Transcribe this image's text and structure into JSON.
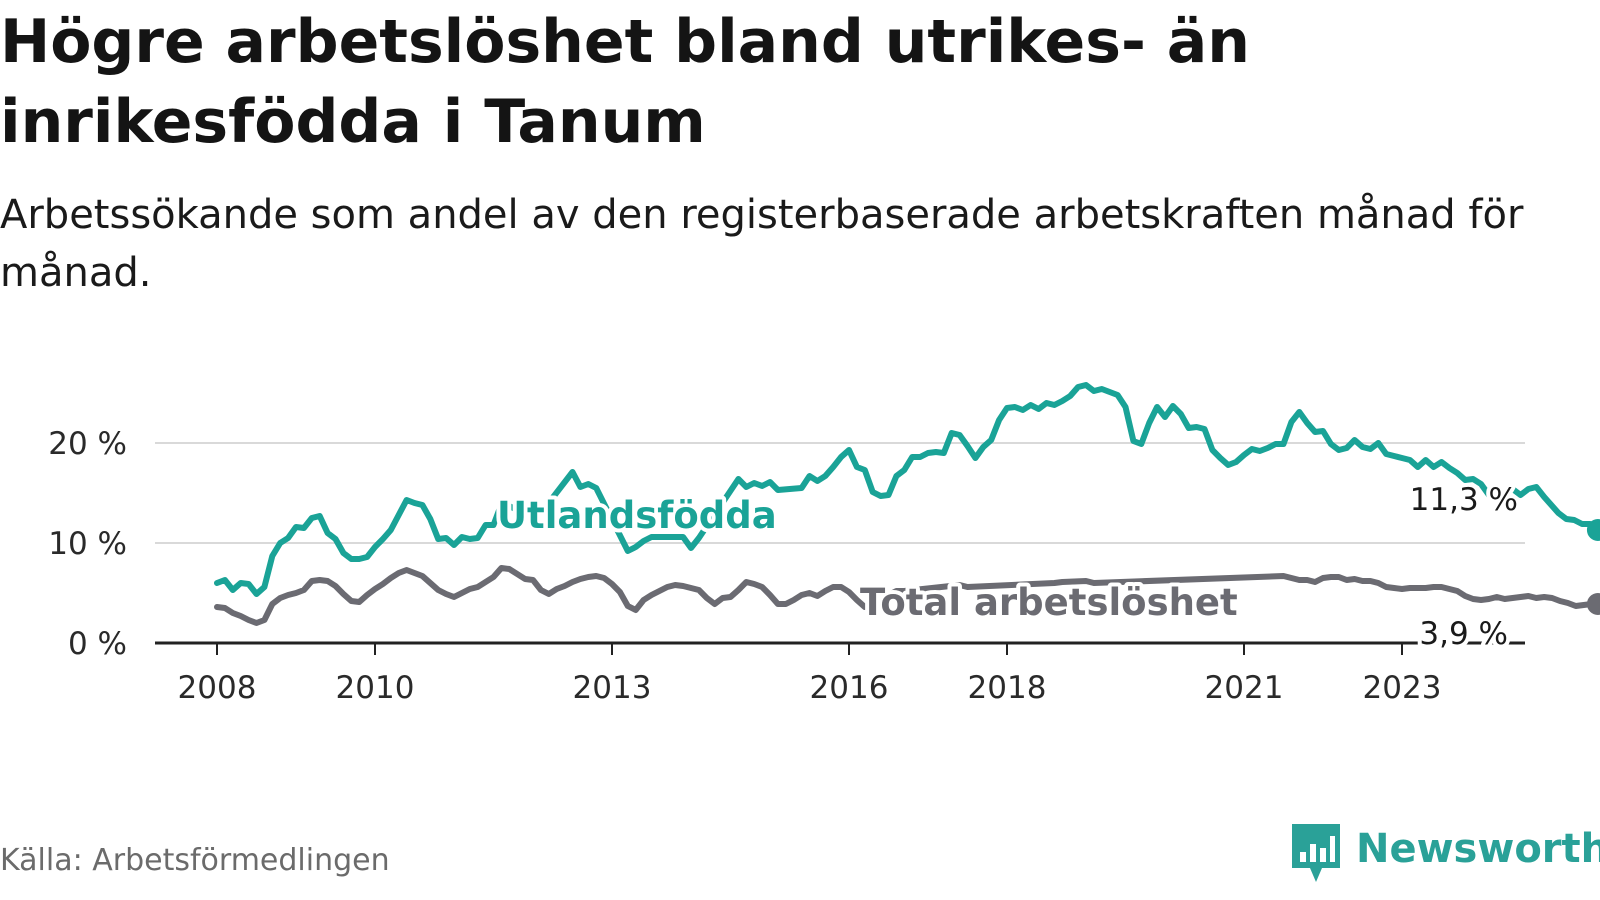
{
  "header": {
    "title": "Högre arbetslöshet bland utrikes- än inrikesfödda i Tanum",
    "subtitle": "Arbetssökande som andel av den registerbaserade arbetskraften månad för månad."
  },
  "footer": {
    "source": "Källa: Arbetsförmedlingen",
    "brand": "Newsworthy"
  },
  "colors": {
    "foreign": "#1aa397",
    "total": "#6b6b72",
    "grid": "#d9d9d9",
    "axis": "#222222",
    "brand": "#2aa198"
  },
  "chart_data": {
    "type": "line",
    "title": "Högre arbetslöshet bland utrikes- än inrikesfödda i Tanum",
    "xlabel": "",
    "ylabel": "",
    "xlim": [
      2007.6,
      2024.9
    ],
    "ylim": [
      0,
      26
    ],
    "y_ticks": [
      0,
      10,
      20
    ],
    "y_tick_labels": [
      "0 %",
      "10 %",
      "20 %"
    ],
    "x_ticks": [
      2008,
      2010,
      2013,
      2016,
      2018,
      2021,
      2023
    ],
    "x_tick_labels": [
      "2008",
      "2010",
      "2013",
      "2016",
      "2018",
      "2021",
      "2023"
    ],
    "grid": true,
    "series": [
      {
        "name": "Utlandsfödda",
        "label": "Utlandsfödda",
        "color": "#1aa397",
        "end_label": "11,3 %",
        "end_value": 11.3,
        "points": [
          [
            2008.0,
            6.0
          ],
          [
            2008.1,
            6.3
          ],
          [
            2008.2,
            5.3
          ],
          [
            2008.3,
            6.0
          ],
          [
            2008.4,
            5.9
          ],
          [
            2008.5,
            4.9
          ],
          [
            2008.6,
            5.6
          ],
          [
            2008.7,
            8.7
          ],
          [
            2008.8,
            10.0
          ],
          [
            2008.9,
            10.5
          ],
          [
            2009.0,
            11.6
          ],
          [
            2009.1,
            11.5
          ],
          [
            2009.2,
            12.5
          ],
          [
            2009.3,
            12.7
          ],
          [
            2009.4,
            11.0
          ],
          [
            2009.5,
            10.4
          ],
          [
            2009.6,
            9.0
          ],
          [
            2009.7,
            8.4
          ],
          [
            2009.8,
            8.4
          ],
          [
            2009.9,
            8.6
          ],
          [
            2010.0,
            9.6
          ],
          [
            2010.1,
            10.4
          ],
          [
            2010.2,
            11.3
          ],
          [
            2010.3,
            12.8
          ],
          [
            2010.4,
            14.3
          ],
          [
            2010.5,
            14.0
          ],
          [
            2010.6,
            13.8
          ],
          [
            2010.7,
            12.4
          ],
          [
            2010.8,
            10.4
          ],
          [
            2010.9,
            10.5
          ],
          [
            2011.0,
            9.8
          ],
          [
            2011.1,
            10.6
          ],
          [
            2011.2,
            10.4
          ],
          [
            2011.3,
            10.5
          ],
          [
            2011.4,
            11.8
          ],
          [
            2011.5,
            11.8
          ],
          [
            2011.6,
            13.9
          ],
          [
            2011.7,
            13.7
          ],
          [
            2011.8,
            13.3
          ],
          [
            2011.9,
            13.5
          ],
          [
            2012.0,
            14.2
          ],
          [
            2012.1,
            13.0
          ],
          [
            2012.5,
            17.1
          ],
          [
            2012.6,
            15.6
          ],
          [
            2012.7,
            15.9
          ],
          [
            2012.8,
            15.5
          ],
          [
            2013.2,
            9.2
          ],
          [
            2013.3,
            9.6
          ],
          [
            2013.4,
            10.2
          ],
          [
            2013.5,
            10.6
          ],
          [
            2013.9,
            10.6
          ],
          [
            2014.0,
            9.5
          ],
          [
            2014.1,
            10.5
          ],
          [
            2014.6,
            16.4
          ],
          [
            2014.7,
            15.6
          ],
          [
            2014.8,
            16.0
          ],
          [
            2014.9,
            15.7
          ],
          [
            2015.0,
            16.1
          ],
          [
            2015.1,
            15.3
          ],
          [
            2015.4,
            15.5
          ],
          [
            2015.5,
            16.7
          ],
          [
            2015.6,
            16.2
          ],
          [
            2015.7,
            16.7
          ],
          [
            2015.8,
            17.6
          ],
          [
            2015.9,
            18.6
          ],
          [
            2016.0,
            19.3
          ],
          [
            2016.1,
            17.6
          ],
          [
            2016.2,
            17.3
          ],
          [
            2016.3,
            15.1
          ],
          [
            2016.4,
            14.7
          ],
          [
            2016.5,
            14.8
          ],
          [
            2016.6,
            16.7
          ],
          [
            2016.7,
            17.3
          ],
          [
            2016.8,
            18.6
          ],
          [
            2016.9,
            18.6
          ],
          [
            2017.0,
            19.0
          ],
          [
            2017.1,
            19.1
          ],
          [
            2017.2,
            19.0
          ],
          [
            2017.3,
            21.0
          ],
          [
            2017.4,
            20.8
          ],
          [
            2017.5,
            19.7
          ],
          [
            2017.6,
            18.5
          ],
          [
            2017.7,
            19.6
          ],
          [
            2017.8,
            20.3
          ],
          [
            2017.9,
            22.3
          ],
          [
            2018.0,
            23.5
          ],
          [
            2018.1,
            23.6
          ],
          [
            2018.2,
            23.3
          ],
          [
            2018.3,
            23.8
          ],
          [
            2018.4,
            23.4
          ],
          [
            2018.5,
            24.0
          ],
          [
            2018.6,
            23.8
          ],
          [
            2018.7,
            24.2
          ],
          [
            2018.8,
            24.7
          ],
          [
            2018.9,
            25.6
          ],
          [
            2019.0,
            25.8
          ],
          [
            2019.1,
            25.2
          ],
          [
            2019.2,
            25.4
          ],
          [
            2019.3,
            25.1
          ],
          [
            2019.4,
            24.8
          ],
          [
            2019.5,
            23.6
          ],
          [
            2019.6,
            20.2
          ],
          [
            2019.7,
            19.9
          ],
          [
            2019.8,
            22.0
          ],
          [
            2019.9,
            23.6
          ],
          [
            2020.0,
            22.6
          ],
          [
            2020.1,
            23.7
          ],
          [
            2020.2,
            22.9
          ],
          [
            2020.3,
            21.5
          ],
          [
            2020.4,
            21.6
          ],
          [
            2020.5,
            21.4
          ],
          [
            2020.6,
            19.3
          ],
          [
            2020.7,
            18.5
          ],
          [
            2020.8,
            17.8
          ],
          [
            2020.9,
            18.1
          ],
          [
            2021.0,
            18.8
          ],
          [
            2021.1,
            19.4
          ],
          [
            2021.2,
            19.2
          ],
          [
            2021.3,
            19.5
          ],
          [
            2021.4,
            19.9
          ],
          [
            2021.5,
            19.9
          ],
          [
            2021.6,
            22.1
          ],
          [
            2021.7,
            23.1
          ],
          [
            2021.8,
            22.0
          ],
          [
            2021.9,
            21.1
          ],
          [
            2022.0,
            21.2
          ],
          [
            2022.1,
            19.9
          ],
          [
            2022.2,
            19.3
          ],
          [
            2022.3,
            19.5
          ],
          [
            2022.4,
            20.3
          ],
          [
            2022.5,
            19.6
          ],
          [
            2022.6,
            19.4
          ],
          [
            2022.7,
            20.0
          ],
          [
            2022.8,
            18.9
          ],
          [
            2022.9,
            18.7
          ],
          [
            2023.0,
            18.5
          ],
          [
            2023.1,
            18.3
          ],
          [
            2023.2,
            17.6
          ],
          [
            2023.3,
            18.3
          ],
          [
            2023.4,
            17.6
          ],
          [
            2023.5,
            18.1
          ],
          [
            2023.6,
            17.5
          ],
          [
            2023.7,
            17.0
          ],
          [
            2023.8,
            16.3
          ],
          [
            2023.9,
            16.4
          ],
          [
            2024.0,
            15.9
          ],
          [
            2024.1,
            14.8
          ],
          [
            2024.2,
            15.0
          ],
          [
            2024.3,
            14.8
          ],
          [
            2024.4,
            15.4
          ],
          [
            2024.5,
            14.8
          ],
          [
            2024.6,
            15.4
          ],
          [
            2024.7,
            15.6
          ],
          [
            2024.8,
            14.6
          ],
          [
            2024.98,
            13.0
          ],
          [
            2025.08,
            12.4
          ],
          [
            2025.18,
            12.3
          ],
          [
            2025.28,
            11.9
          ],
          [
            2025.38,
            11.9
          ],
          [
            2025.48,
            11.3
          ]
        ]
      },
      {
        "name": "Total arbetslöshet",
        "label": "Total arbetslöshet",
        "color": "#6b6b72",
        "end_label": "3,9 %",
        "end_value": 3.9,
        "points": [
          [
            2008.0,
            3.6
          ],
          [
            2008.1,
            3.5
          ],
          [
            2008.2,
            3.0
          ],
          [
            2008.3,
            2.7
          ],
          [
            2008.4,
            2.3
          ],
          [
            2008.5,
            2.0
          ],
          [
            2008.6,
            2.3
          ],
          [
            2008.7,
            3.9
          ],
          [
            2008.8,
            4.5
          ],
          [
            2008.9,
            4.8
          ],
          [
            2009.0,
            5.0
          ],
          [
            2009.1,
            5.3
          ],
          [
            2009.2,
            6.2
          ],
          [
            2009.3,
            6.3
          ],
          [
            2009.4,
            6.2
          ],
          [
            2009.5,
            5.7
          ],
          [
            2009.6,
            4.9
          ],
          [
            2009.7,
            4.2
          ],
          [
            2009.8,
            4.1
          ],
          [
            2009.9,
            4.8
          ],
          [
            2010.0,
            5.4
          ],
          [
            2010.1,
            5.9
          ],
          [
            2010.2,
            6.5
          ],
          [
            2010.3,
            7.0
          ],
          [
            2010.4,
            7.3
          ],
          [
            2010.5,
            7.0
          ],
          [
            2010.6,
            6.7
          ],
          [
            2010.7,
            6.0
          ],
          [
            2010.8,
            5.3
          ],
          [
            2010.9,
            4.9
          ],
          [
            2011.0,
            4.6
          ],
          [
            2011.1,
            5.0
          ],
          [
            2011.2,
            5.4
          ],
          [
            2011.3,
            5.6
          ],
          [
            2011.4,
            6.1
          ],
          [
            2011.5,
            6.6
          ],
          [
            2011.6,
            7.5
          ],
          [
            2011.7,
            7.4
          ],
          [
            2011.8,
            6.9
          ],
          [
            2011.9,
            6.4
          ],
          [
            2012.0,
            6.3
          ],
          [
            2012.1,
            5.3
          ],
          [
            2012.2,
            4.9
          ],
          [
            2012.3,
            5.4
          ],
          [
            2012.4,
            5.7
          ],
          [
            2012.5,
            6.1
          ],
          [
            2012.6,
            6.4
          ],
          [
            2012.7,
            6.6
          ],
          [
            2012.8,
            6.7
          ],
          [
            2012.9,
            6.5
          ],
          [
            2013.0,
            5.9
          ],
          [
            2013.1,
            5.1
          ],
          [
            2013.2,
            3.7
          ],
          [
            2013.3,
            3.3
          ],
          [
            2013.4,
            4.3
          ],
          [
            2013.5,
            4.8
          ],
          [
            2013.6,
            5.2
          ],
          [
            2013.7,
            5.6
          ],
          [
            2013.8,
            5.8
          ],
          [
            2013.9,
            5.7
          ],
          [
            2014.0,
            5.5
          ],
          [
            2014.1,
            5.3
          ],
          [
            2014.2,
            4.5
          ],
          [
            2014.3,
            3.9
          ],
          [
            2014.4,
            4.5
          ],
          [
            2014.5,
            4.6
          ],
          [
            2014.6,
            5.3
          ],
          [
            2014.7,
            6.1
          ],
          [
            2014.8,
            5.9
          ],
          [
            2014.9,
            5.6
          ],
          [
            2015.0,
            4.8
          ],
          [
            2015.1,
            3.9
          ],
          [
            2015.2,
            3.9
          ],
          [
            2015.3,
            4.3
          ],
          [
            2015.4,
            4.8
          ],
          [
            2015.5,
            5.0
          ],
          [
            2015.6,
            4.7
          ],
          [
            2015.7,
            5.2
          ],
          [
            2015.8,
            5.6
          ],
          [
            2015.9,
            5.6
          ],
          [
            2016.0,
            5.1
          ],
          [
            2016.1,
            4.3
          ],
          [
            2016.2,
            3.6
          ],
          [
            2016.3,
            3.8
          ],
          [
            2016.4,
            4.2
          ],
          [
            2016.5,
            4.8
          ],
          [
            2016.6,
            5.2
          ],
          [
            2016.7,
            5.2
          ],
          [
            2017.4,
            5.8
          ],
          [
            2017.5,
            5.6
          ],
          [
            2018.6,
            6.0
          ],
          [
            2018.7,
            6.1
          ],
          [
            2019.0,
            6.2
          ],
          [
            2019.1,
            6.0
          ],
          [
            2021.5,
            6.7
          ],
          [
            2021.6,
            6.5
          ],
          [
            2021.7,
            6.3
          ],
          [
            2021.8,
            6.3
          ],
          [
            2021.9,
            6.1
          ],
          [
            2022.0,
            6.5
          ],
          [
            2022.1,
            6.6
          ],
          [
            2022.2,
            6.6
          ],
          [
            2022.3,
            6.3
          ],
          [
            2022.4,
            6.4
          ],
          [
            2022.5,
            6.2
          ],
          [
            2022.6,
            6.2
          ],
          [
            2022.7,
            6.0
          ],
          [
            2022.8,
            5.6
          ],
          [
            2022.9,
            5.5
          ],
          [
            2023.0,
            5.4
          ],
          [
            2023.1,
            5.5
          ],
          [
            2023.2,
            5.5
          ],
          [
            2023.3,
            5.5
          ],
          [
            2023.4,
            5.6
          ],
          [
            2023.5,
            5.6
          ],
          [
            2023.6,
            5.4
          ],
          [
            2023.7,
            5.2
          ],
          [
            2023.8,
            4.7
          ],
          [
            2023.9,
            4.4
          ],
          [
            2024.0,
            4.3
          ],
          [
            2024.1,
            4.4
          ],
          [
            2024.2,
            4.6
          ],
          [
            2024.3,
            4.4
          ],
          [
            2024.4,
            4.5
          ],
          [
            2024.5,
            4.6
          ],
          [
            2024.6,
            4.7
          ],
          [
            2024.7,
            4.5
          ],
          [
            2024.8,
            4.6
          ],
          [
            2024.9,
            4.5
          ],
          [
            2025.0,
            4.2
          ],
          [
            2025.1,
            4.0
          ],
          [
            2025.2,
            3.7
          ],
          [
            2025.3,
            3.8
          ],
          [
            2025.4,
            3.9
          ],
          [
            2025.48,
            3.9
          ]
        ]
      }
    ]
  }
}
